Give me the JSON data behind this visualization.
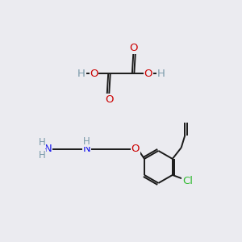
{
  "bg_color": "#ebebf0",
  "atom_colors": {
    "O": "#cc0000",
    "N": "#1a1aee",
    "Cl": "#33bb33",
    "C": "#1a1a1a",
    "H": "#7a9aaa"
  },
  "bond_lw": 1.4,
  "fontsize": 8.5
}
